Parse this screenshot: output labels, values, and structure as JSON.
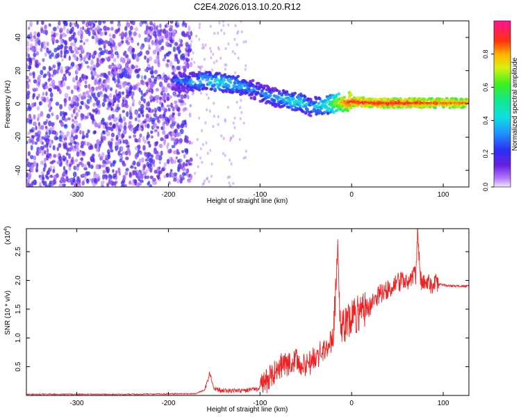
{
  "title": "C2E4.2026.013.10.20.R12",
  "chart_data": [
    {
      "type": "heatmap",
      "xlabel": "Height of straight line (km)",
      "ylabel": "Frequency (Hz)",
      "xlim": [
        -355,
        128
      ],
      "ylim": [
        -50,
        50
      ],
      "xticks": [
        -300,
        -200,
        -100,
        0,
        100
      ],
      "yticks": [
        -40,
        -20,
        0,
        20,
        40
      ],
      "colorbar": {
        "label": "Normalized spectral amplitude",
        "range": [
          0,
          1
        ],
        "ticks": [
          0.0,
          0.2,
          0.4,
          0.6,
          0.8
        ]
      },
      "noise_region_x": [
        -355,
        -175
      ],
      "ridge": {
        "x": [
          -195,
          -175,
          -160,
          -145,
          -130,
          -115,
          -100,
          -85,
          -70,
          -55,
          -45,
          -35,
          -20,
          -10,
          0,
          10,
          30,
          60,
          90,
          128
        ],
        "y": [
          14,
          13,
          14,
          13,
          12,
          10,
          7,
          4,
          2,
          1,
          -2,
          -1,
          0,
          1,
          1.5,
          1,
          0.5,
          0.5,
          0.5,
          0.5
        ],
        "amplitude": [
          0.25,
          0.35,
          0.4,
          0.45,
          0.4,
          0.35,
          0.3,
          0.35,
          0.4,
          0.45,
          0.35,
          0.4,
          0.6,
          0.8,
          0.9,
          0.9,
          0.9,
          0.9,
          0.85,
          0.85
        ]
      }
    },
    {
      "type": "line",
      "xlabel": "Height of straight line (km)",
      "ylabel": "SNR (10 * v/v)",
      "y_multiplier": "(x10",
      "y_exponent": "4",
      "xlim": [
        -355,
        128
      ],
      "ylim": [
        0,
        2.9
      ],
      "xticks": [
        -300,
        -200,
        -100,
        0,
        100
      ],
      "yticks": [
        0.5,
        1.0,
        1.5,
        2.0,
        2.5
      ],
      "series": [
        {
          "color": "#ee2222",
          "x": [
            -355,
            -250,
            -170,
            -160,
            -155,
            -150,
            -140,
            -120,
            -100,
            -90,
            -80,
            -70,
            -60,
            -50,
            -40,
            -30,
            -20,
            -15,
            -12,
            -10,
            0,
            10,
            20,
            30,
            40,
            50,
            60,
            70,
            72,
            75,
            80,
            90,
            100,
            110,
            128
          ],
          "y": [
            0.02,
            0.02,
            0.03,
            0.1,
            0.4,
            0.12,
            0.08,
            0.08,
            0.12,
            0.3,
            0.5,
            0.55,
            0.6,
            0.5,
            0.65,
            0.8,
            1.0,
            2.5,
            1.1,
            1.2,
            1.35,
            1.45,
            1.55,
            1.75,
            1.85,
            1.95,
            2.0,
            2.1,
            2.85,
            2.0,
            1.95,
            1.95,
            1.92,
            1.9,
            1.9
          ]
        }
      ]
    }
  ]
}
